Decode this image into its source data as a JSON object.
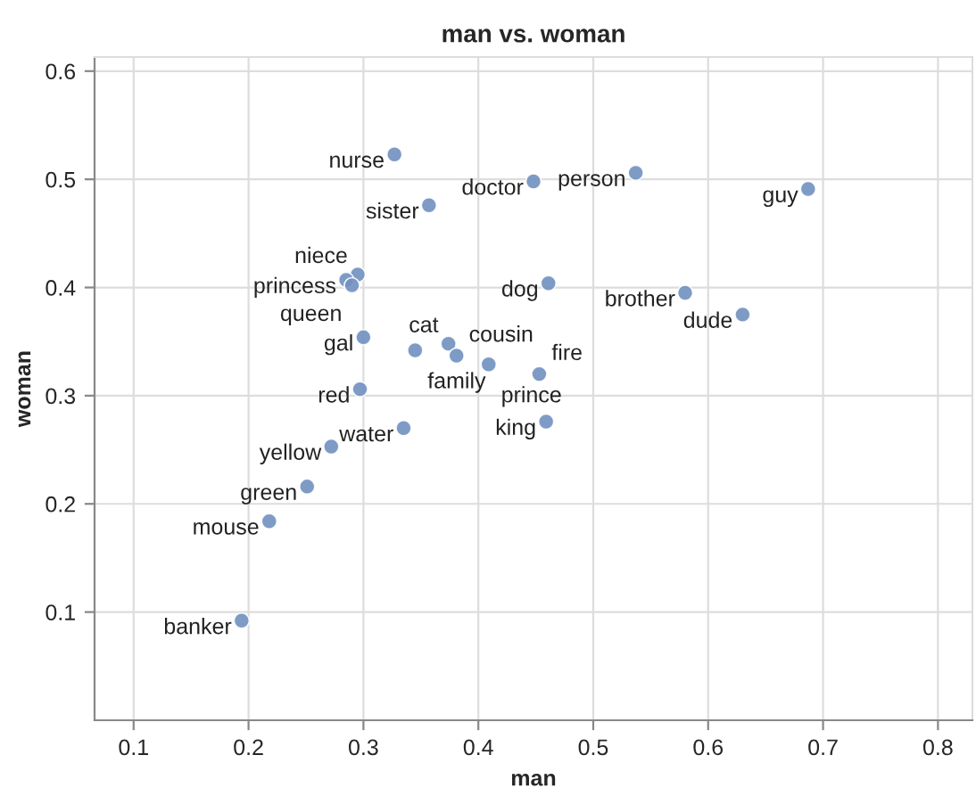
{
  "chart_data": {
    "type": "scatter",
    "title": "man vs. woman",
    "xlabel": "man",
    "ylabel": "woman",
    "x": [
      0.327,
      0.448,
      0.537,
      0.687,
      0.357,
      0.295,
      0.285,
      0.29,
      0.461,
      0.58,
      0.63,
      0.3,
      0.374,
      0.345,
      0.381,
      0.409,
      0.453,
      0.297,
      0.459,
      0.335,
      0.272,
      0.251,
      0.218,
      0.194
    ],
    "series": [
      {
        "color": "#7090c0",
        "values": [
          0.523,
          0.498,
          0.506,
          0.491,
          0.476,
          0.412,
          0.407,
          0.402,
          0.404,
          0.395,
          0.375,
          0.354,
          0.348,
          0.342,
          0.337,
          0.329,
          0.32,
          0.306,
          0.276,
          0.27,
          0.253,
          0.216,
          0.184,
          0.092
        ]
      }
    ],
    "annotations": [
      {
        "text": "nurse",
        "x": 0.327,
        "y": 0.523
      },
      {
        "text": "doctor",
        "x": 0.448,
        "y": 0.498
      },
      {
        "text": "person",
        "x": 0.537,
        "y": 0.506
      },
      {
        "text": "guy",
        "x": 0.687,
        "y": 0.491
      },
      {
        "text": "sister",
        "x": 0.357,
        "y": 0.476
      },
      {
        "text": "niece",
        "x": 0.295,
        "y": 0.412
      },
      {
        "text": "princess",
        "x": 0.285,
        "y": 0.407
      },
      {
        "text": "queen",
        "x": 0.29,
        "y": 0.402
      },
      {
        "text": "dog",
        "x": 0.461,
        "y": 0.404
      },
      {
        "text": "brother",
        "x": 0.58,
        "y": 0.395
      },
      {
        "text": "dude",
        "x": 0.63,
        "y": 0.375
      },
      {
        "text": "gal",
        "x": 0.3,
        "y": 0.354
      },
      {
        "text": "cat",
        "x": 0.374,
        "y": 0.348
      },
      {
        "text": "family",
        "x": 0.345,
        "y": 0.342
      },
      {
        "text": "cousin",
        "x": 0.381,
        "y": 0.337
      },
      {
        "text": "prince",
        "x": 0.409,
        "y": 0.329
      },
      {
        "text": "fire",
        "x": 0.453,
        "y": 0.32
      },
      {
        "text": "red",
        "x": 0.297,
        "y": 0.306
      },
      {
        "text": "king",
        "x": 0.459,
        "y": 0.276
      },
      {
        "text": "water",
        "x": 0.335,
        "y": 0.27
      },
      {
        "text": "yellow",
        "x": 0.272,
        "y": 0.253
      },
      {
        "text": "green",
        "x": 0.251,
        "y": 0.216
      },
      {
        "text": "mouse",
        "x": 0.218,
        "y": 0.184
      },
      {
        "text": "banker",
        "x": 0.194,
        "y": 0.092
      }
    ],
    "xlim": [
      0.066,
      0.83
    ],
    "xticks": [
      0.1,
      0.2,
      0.3,
      0.4,
      0.5,
      0.6,
      0.7,
      0.8
    ],
    "ylim": [
      0.0,
      0.613
    ],
    "yticks": [
      0.1,
      0.2,
      0.3,
      0.4,
      0.5,
      0.6
    ],
    "grid": true,
    "marker": "circle",
    "legend": false
  }
}
